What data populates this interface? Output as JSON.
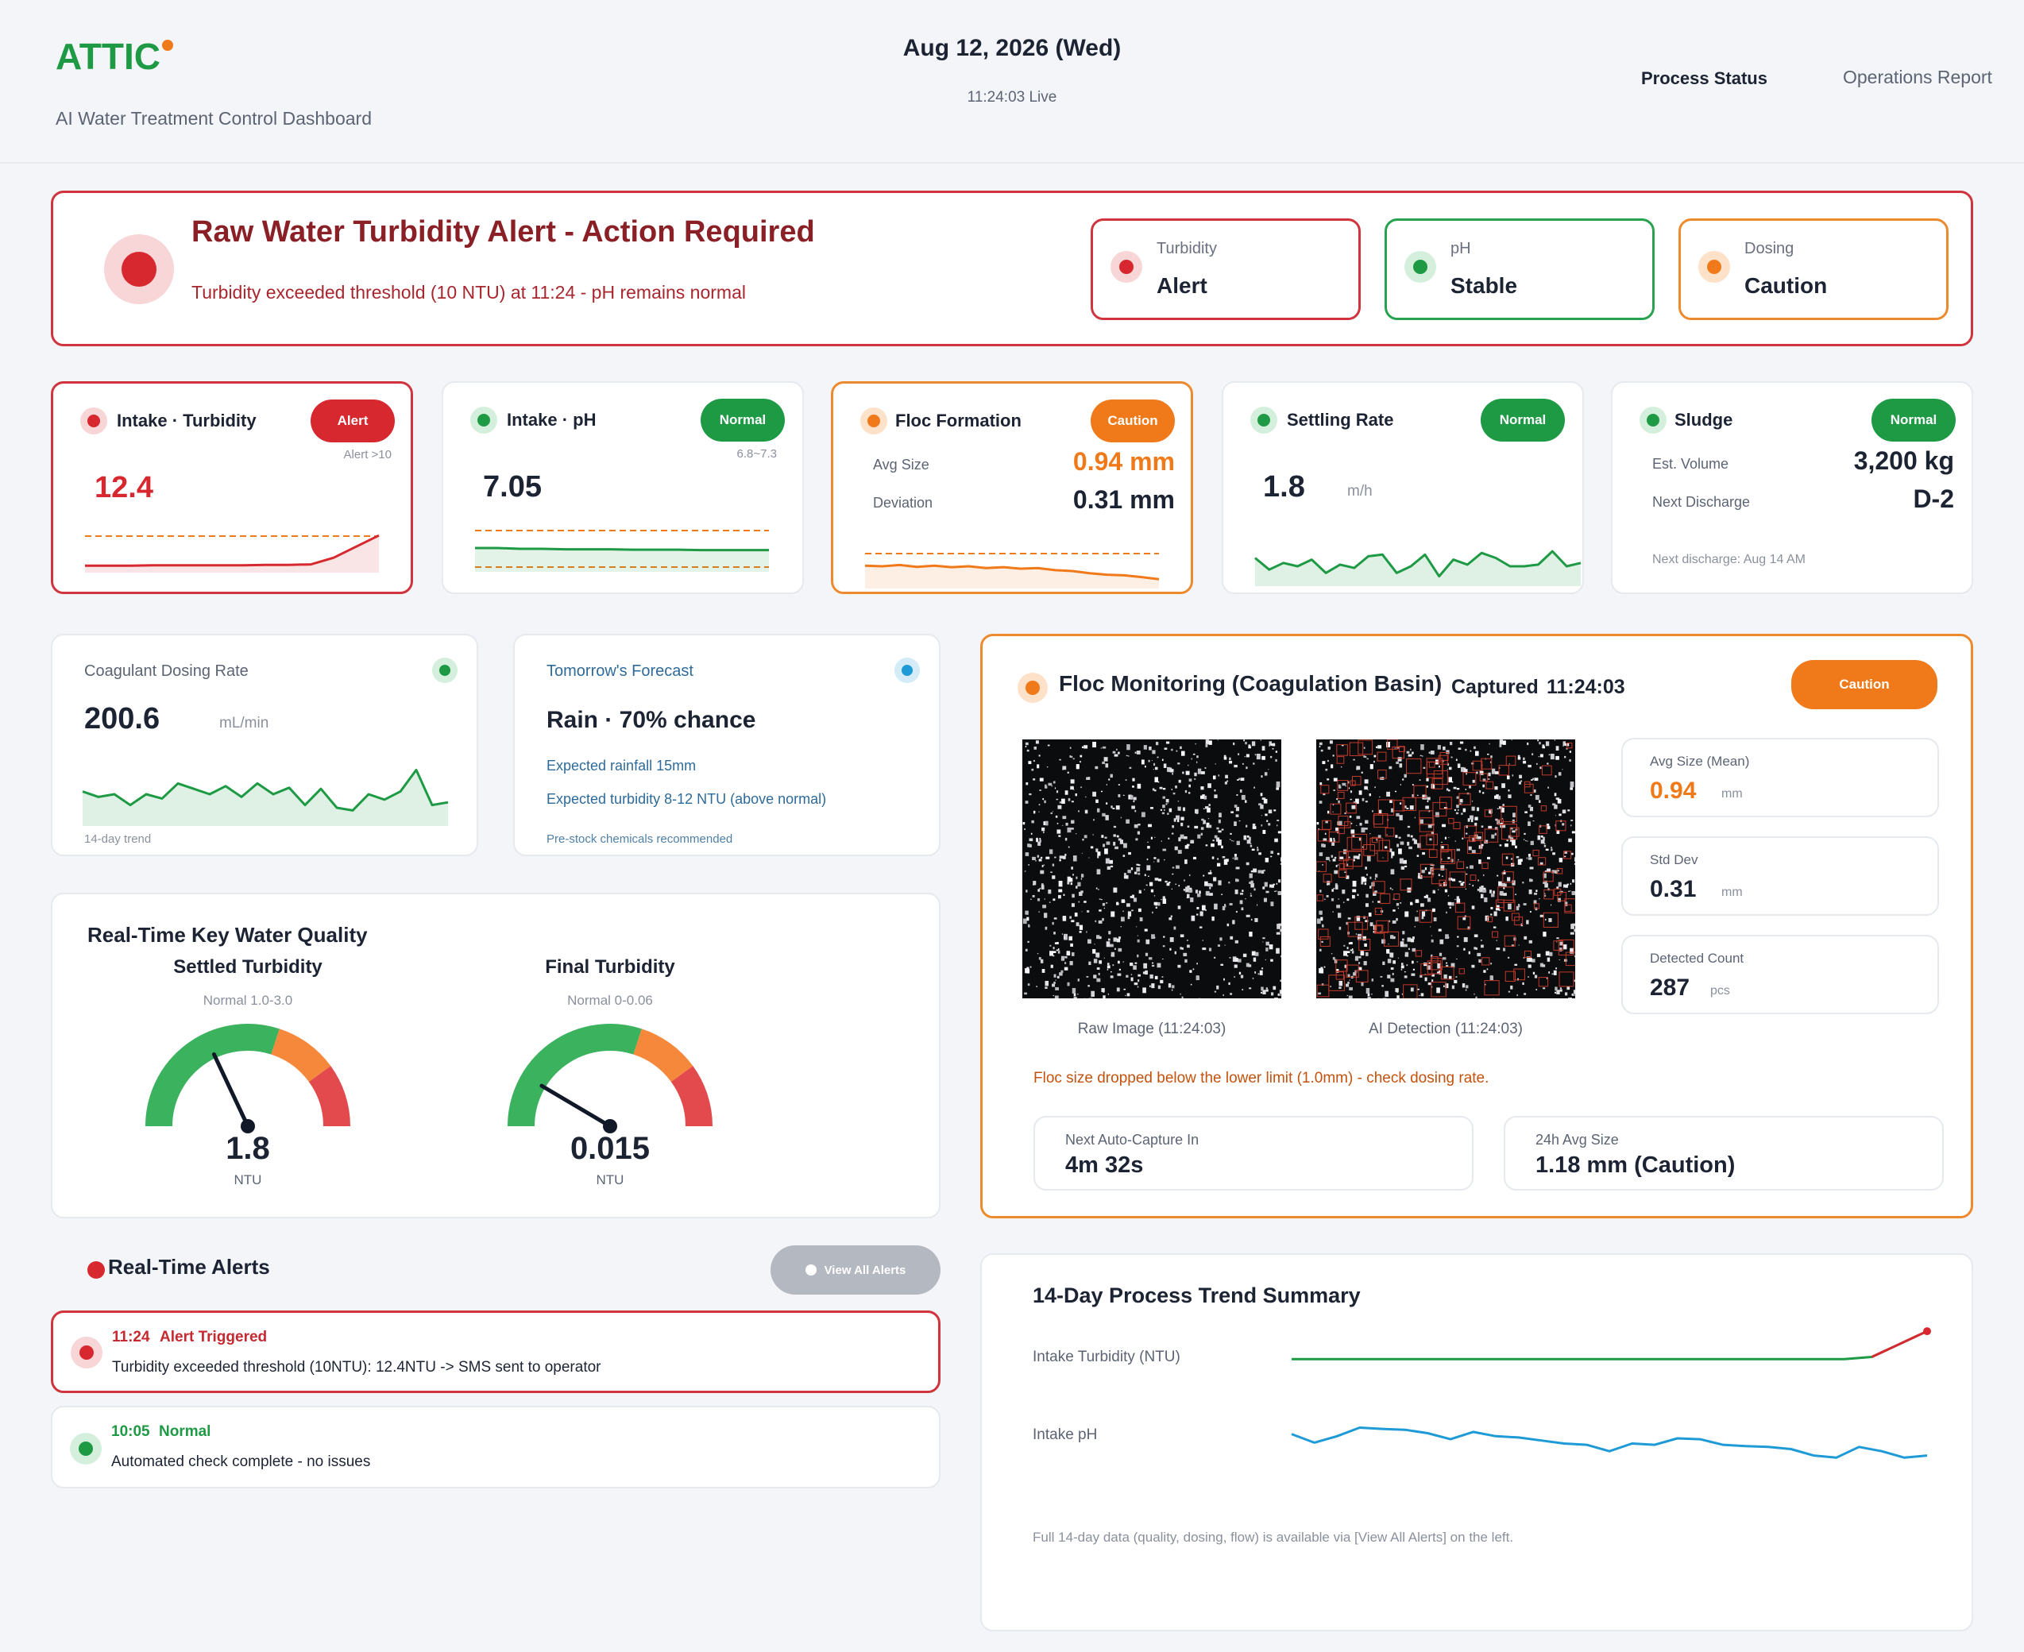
{
  "header": {
    "logo": "ATTIC",
    "subtitle": "AI Water Treatment Control Dashboard",
    "date": "Aug 12, 2026 (Wed)",
    "time_live": "11:24:03  Live",
    "nav": [
      "Process Status",
      "Operations Report"
    ]
  },
  "alert_banner": {
    "title": "Raw Water Turbidity Alert - Action Required",
    "message": "Turbidity exceeded threshold (10 NTU) at 11:24 - pH remains normal",
    "statuses": [
      {
        "label": "Turbidity",
        "value": "Alert",
        "color": "#d7282f"
      },
      {
        "label": "pH",
        "value": "Stable",
        "color": "#1e9a45"
      },
      {
        "label": "Dosing",
        "value": "Caution",
        "color": "#f07a1a"
      }
    ]
  },
  "metrics": {
    "turbidity": {
      "title": "Intake · Turbidity",
      "badge": "Alert",
      "threshold": "Alert >10",
      "value": "12.4",
      "trend": [
        0.12,
        0.12,
        0.12,
        0.13,
        0.13,
        0.13,
        0.13,
        0.13,
        0.14,
        0.14,
        0.15,
        0.3,
        0.55,
        0.8
      ]
    },
    "ph": {
      "title": "Intake · pH",
      "badge": "Normal",
      "range": "6.8~7.3",
      "value": "7.05",
      "trend": [
        0.5,
        0.5,
        0.48,
        0.48,
        0.47,
        0.47,
        0.47,
        0.46,
        0.46,
        0.46,
        0.45,
        0.45,
        0.45,
        0.45
      ]
    },
    "floc": {
      "title": "Floc Formation",
      "badge": "Caution",
      "avg_label": "Avg Size",
      "avg_value": "0.94 mm",
      "dev_label": "Deviation",
      "dev_value": "0.31 mm",
      "trend": [
        0.6,
        0.58,
        0.62,
        0.56,
        0.6,
        0.55,
        0.58,
        0.52,
        0.55,
        0.5,
        0.52,
        0.45,
        0.42,
        0.35,
        0.3,
        0.28,
        0.22,
        0.15
      ]
    },
    "settling": {
      "title": "Settling Rate",
      "badge": "Normal",
      "value": "1.8",
      "unit": "m/h",
      "trend": [
        0.75,
        0.4,
        0.6,
        0.5,
        0.7,
        0.3,
        0.55,
        0.45,
        0.8,
        0.85,
        0.3,
        0.5,
        0.85,
        0.2,
        0.7,
        0.55,
        0.9,
        0.75,
        0.5,
        0.5,
        0.55,
        0.95,
        0.5,
        0.6
      ]
    },
    "sludge": {
      "title": "Sludge",
      "badge": "Normal",
      "vol_label": "Est. Volume",
      "vol_value": "3,200 kg",
      "next_label": "Next Discharge",
      "next_value": "D-2",
      "note": "Next discharge: Aug 14 AM"
    }
  },
  "coagulant": {
    "title": "Coagulant Dosing Rate",
    "value": "200.6",
    "unit": "mL/min",
    "footer": "14-day trend",
    "trend": [
      0.55,
      0.45,
      0.5,
      0.3,
      0.5,
      0.42,
      0.7,
      0.6,
      0.5,
      0.65,
      0.45,
      0.7,
      0.5,
      0.62,
      0.3,
      0.6,
      0.25,
      0.2,
      0.5,
      0.4,
      0.55,
      0.95,
      0.3,
      0.35
    ]
  },
  "forecast": {
    "title": "Tomorrow's Forecast",
    "headline": "Rain · 70% chance",
    "line1": "Expected rainfall 15mm",
    "line2": "Expected turbidity 8-12 NTU (above normal)",
    "note": "Pre-stock chemicals recommended"
  },
  "gauges": {
    "title": "Real-Time Key Water Quality",
    "items": [
      {
        "name": "Settled Turbidity",
        "range": "Normal 1.0-3.0",
        "value": "1.8",
        "unit": "NTU",
        "level": 0.36
      },
      {
        "name": "Final Turbidity",
        "range": "Normal 0-0.06",
        "value": "0.015",
        "unit": "NTU",
        "level": 0.17
      }
    ]
  },
  "floc_monitor": {
    "title": "Floc Monitoring (Coagulation Basin)",
    "captured_label": "Captured",
    "captured_time": "11:24:03",
    "badge": "Caution",
    "raw_caption": "Raw Image (11:24:03)",
    "ai_caption": "AI Detection (11:24:03)",
    "stats": [
      {
        "label": "Avg Size (Mean)",
        "value": "0.94",
        "unit": "mm",
        "highlight": true
      },
      {
        "label": "Std Dev",
        "value": "0.31",
        "unit": "mm",
        "highlight": false
      },
      {
        "label": "Detected Count",
        "value": "287",
        "unit": "pcs",
        "highlight": false
      }
    ],
    "warning": "Floc size dropped below the lower limit (1.0mm) - check dosing rate.",
    "next_capture_label": "Next Auto-Capture In",
    "next_capture_value": "4m 32s",
    "avg24_label": "24h Avg Size",
    "avg24_value": "1.18 mm (Caution)"
  },
  "alerts": {
    "title": "Real-Time Alerts",
    "view_all": "View All Alerts",
    "items": [
      {
        "time": "11:24",
        "status": "Alert Triggered",
        "message": "Turbidity exceeded threshold (10NTU): 12.4NTU -> SMS sent to operator",
        "level": "alert"
      },
      {
        "time": "10:05",
        "status": "Normal",
        "message": "Automated check complete - no issues",
        "level": "normal"
      }
    ]
  },
  "trend_summary": {
    "title": "14-Day Process Trend Summary",
    "rows": [
      {
        "label": "Intake Turbidity (NTU)",
        "values": [
          0.2,
          0.2,
          0.2,
          0.2,
          0.2,
          0.2,
          0.2,
          0.2,
          0.2,
          0.2,
          0.2,
          0.2,
          0.2,
          0.2,
          0.2,
          0.2,
          0.2,
          0.2,
          0.2,
          0.2,
          0.2,
          0.25,
          0.55,
          0.85
        ]
      },
      {
        "label": "Intake pH",
        "values": [
          0.6,
          0.4,
          0.55,
          0.75,
          0.72,
          0.7,
          0.62,
          0.48,
          0.65,
          0.55,
          0.52,
          0.45,
          0.38,
          0.35,
          0.2,
          0.38,
          0.35,
          0.5,
          0.48,
          0.35,
          0.32,
          0.3,
          0.25,
          0.1,
          0.05,
          0.3,
          0.2,
          0.05,
          0.1
        ]
      }
    ],
    "footer": "Full 14-day data (quality, dosing, flow) is available via [View All Alerts] on the left."
  }
}
